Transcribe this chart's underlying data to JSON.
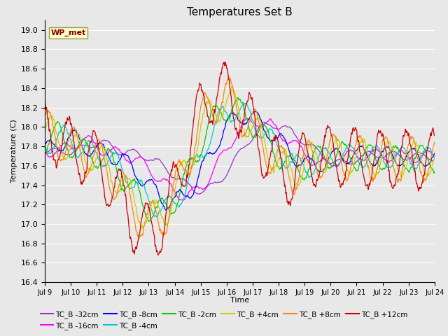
{
  "title": "Temperatures Set B",
  "xlabel": "Time",
  "ylabel": "Temperature (C)",
  "ylim": [
    16.4,
    19.1
  ],
  "series_labels": [
    "TC_B -32cm",
    "TC_B -16cm",
    "TC_B -8cm",
    "TC_B -4cm",
    "TC_B -2cm",
    "TC_B +4cm",
    "TC_B +8cm",
    "TC_B +12cm"
  ],
  "series_colors": [
    "#9933cc",
    "#ff00ff",
    "#0000ee",
    "#00cccc",
    "#00cc00",
    "#cccc00",
    "#ff8800",
    "#cc0000"
  ],
  "xtick_labels": [
    "Jul 9",
    "Jul 10",
    "Jul 11",
    "Jul 12",
    "Jul 13",
    "Jul 14",
    "Jul 15",
    "Jul 16",
    "Jul 17",
    "Jul 18",
    "Jul 19",
    "Jul 20",
    "Jul 21",
    "Jul 22",
    "Jul 23",
    "Jul 24"
  ],
  "annotation_text": "WP_met",
  "annotation_bg": "#ffffcc",
  "annotation_border": "#999944",
  "plot_bg": "#e8e8e8",
  "grid_color": "#ffffff",
  "n_points": 1500,
  "n_days": 15
}
